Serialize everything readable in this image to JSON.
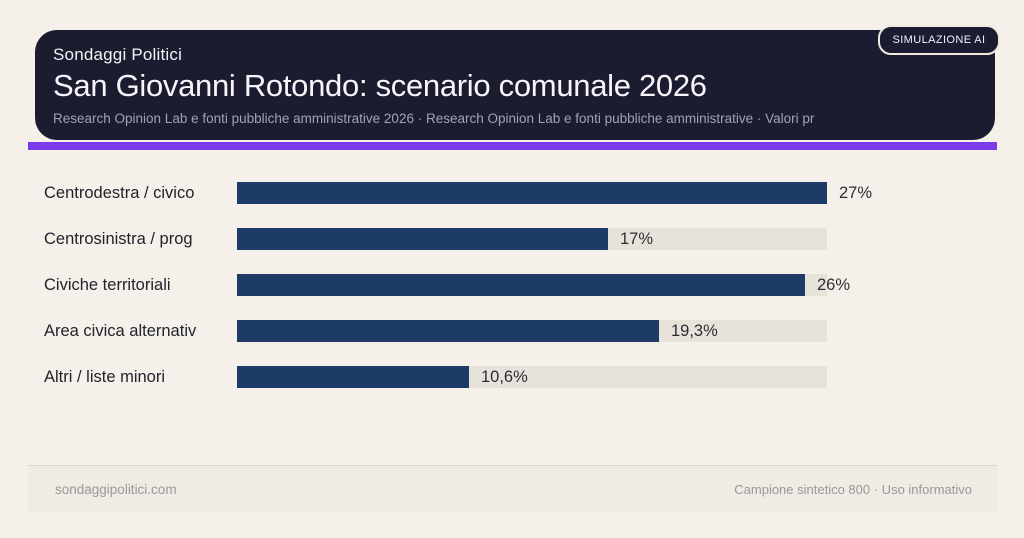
{
  "badge": {
    "label": "SIMULAZIONE AI"
  },
  "header": {
    "eyebrow": "Sondaggi Politici",
    "title": "San Giovanni Rotondo: scenario comunale 2026",
    "subtitle": "Research Opinion Lab e fonti pubbliche amministrative 2026 · Research Opinion Lab e fonti pubbliche amministrative · Valori pr"
  },
  "chart_data": {
    "type": "bar",
    "orientation": "horizontal",
    "title": "San Giovanni Rotondo: scenario comunale 2026",
    "categories": [
      "Centrodestra / civico",
      "Centrosinistra / prog",
      "Civiche territoriali",
      "Area civica alternativ",
      "Altri / liste minori"
    ],
    "values": [
      27,
      17,
      26,
      19.3,
      10.6
    ],
    "value_labels": [
      "27%",
      "17%",
      "26%",
      "19,3%",
      "10,6%"
    ],
    "unit": "%",
    "xlim": [
      0,
      27
    ],
    "grid": false,
    "legend": false,
    "bar_color": "#1e3a66",
    "track_color": "#e8e3da"
  },
  "footer": {
    "left": "sondaggipolitici.com",
    "right": "Campione sintetico 800 · Uso informativo"
  },
  "colors": {
    "page_bg": "#f5f0e9",
    "header_bg": "#1b1c30",
    "accent": "#7c3aed",
    "bar": "#1e3a66",
    "track": "#e8e3da"
  }
}
